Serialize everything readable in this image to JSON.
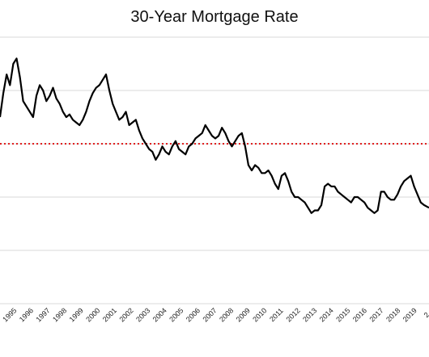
{
  "chart_data": {
    "type": "line",
    "title": "30-Year Mortgage Rate",
    "xlabel": "",
    "ylabel": "",
    "x_ticks": [
      "1995",
      "1996",
      "1997",
      "1998",
      "1999",
      "2000",
      "2001",
      "2002",
      "2003",
      "2004",
      "2005",
      "2006",
      "2007",
      "2008",
      "2009",
      "2010",
      "2011",
      "2012",
      "2013",
      "2014",
      "2015",
      "2016",
      "2017",
      "2018",
      "2019",
      "2"
    ],
    "xlim": [
      1994.0,
      2019.9
    ],
    "ylim": [
      0,
      10
    ],
    "grid": true,
    "series": [
      {
        "name": "",
        "color": "#000000",
        "x": [
          1994.0,
          1994.2,
          1994.4,
          1994.6,
          1994.8,
          1995.0,
          1995.2,
          1995.4,
          1995.6,
          1995.8,
          1996.0,
          1996.2,
          1996.4,
          1996.6,
          1996.8,
          1997.0,
          1997.2,
          1997.4,
          1997.6,
          1997.8,
          1998.0,
          1998.2,
          1998.4,
          1998.6,
          1998.8,
          1999.0,
          1999.2,
          1999.4,
          1999.6,
          1999.8,
          2000.0,
          2000.2,
          2000.4,
          2000.6,
          2000.8,
          2001.0,
          2001.2,
          2001.4,
          2001.6,
          2001.8,
          2002.0,
          2002.2,
          2002.4,
          2002.6,
          2002.8,
          2003.0,
          2003.2,
          2003.4,
          2003.6,
          2003.8,
          2004.0,
          2004.2,
          2004.4,
          2004.6,
          2004.8,
          2005.0,
          2005.2,
          2005.4,
          2005.6,
          2005.8,
          2006.0,
          2006.2,
          2006.4,
          2006.6,
          2006.8,
          2007.0,
          2007.2,
          2007.4,
          2007.6,
          2007.8,
          2008.0,
          2008.2,
          2008.4,
          2008.6,
          2008.8,
          2009.0,
          2009.2,
          2009.4,
          2009.6,
          2009.8,
          2010.0,
          2010.2,
          2010.4,
          2010.6,
          2010.8,
          2011.0,
          2011.2,
          2011.4,
          2011.6,
          2011.8,
          2012.0,
          2012.2,
          2012.4,
          2012.6,
          2012.8,
          2013.0,
          2013.2,
          2013.4,
          2013.6,
          2013.8,
          2014.0,
          2014.2,
          2014.4,
          2014.6,
          2014.8,
          2015.0,
          2015.2,
          2015.4,
          2015.6,
          2015.8,
          2016.0,
          2016.2,
          2016.4,
          2016.6,
          2016.8,
          2017.0,
          2017.2,
          2017.4,
          2017.6,
          2017.8,
          2018.0,
          2018.2,
          2018.4,
          2018.6,
          2018.8,
          2019.0,
          2019.2,
          2019.4,
          2019.6,
          2019.9
        ],
        "y": [
          7.0,
          7.9,
          8.6,
          8.2,
          9.0,
          9.2,
          8.5,
          7.6,
          7.4,
          7.2,
          7.0,
          7.8,
          8.2,
          8.0,
          7.6,
          7.8,
          8.1,
          7.7,
          7.5,
          7.2,
          7.0,
          7.1,
          6.9,
          6.8,
          6.7,
          6.9,
          7.2,
          7.6,
          7.9,
          8.1,
          8.2,
          8.4,
          8.6,
          8.0,
          7.5,
          7.2,
          6.9,
          7.0,
          7.2,
          6.7,
          6.8,
          6.9,
          6.5,
          6.2,
          6.0,
          5.8,
          5.7,
          5.4,
          5.6,
          5.9,
          5.7,
          5.6,
          5.9,
          6.1,
          5.8,
          5.7,
          5.6,
          5.9,
          6.0,
          6.2,
          6.3,
          6.4,
          6.7,
          6.5,
          6.3,
          6.2,
          6.3,
          6.6,
          6.4,
          6.1,
          5.9,
          6.1,
          6.3,
          6.4,
          5.9,
          5.2,
          5.0,
          5.2,
          5.1,
          4.9,
          4.9,
          5.0,
          4.8,
          4.5,
          4.3,
          4.8,
          4.9,
          4.6,
          4.2,
          4.0,
          4.0,
          3.9,
          3.8,
          3.6,
          3.4,
          3.5,
          3.5,
          3.7,
          4.4,
          4.5,
          4.4,
          4.4,
          4.2,
          4.1,
          4.0,
          3.9,
          3.8,
          4.0,
          4.0,
          3.9,
          3.8,
          3.6,
          3.5,
          3.4,
          3.5,
          4.2,
          4.2,
          4.0,
          3.9,
          3.9,
          4.1,
          4.4,
          4.6,
          4.7,
          4.8,
          4.4,
          4.1,
          3.8,
          3.7,
          3.6
        ]
      }
    ],
    "reference_line": {
      "y": 6.0,
      "color": "#e02020",
      "style": "dotted"
    }
  }
}
